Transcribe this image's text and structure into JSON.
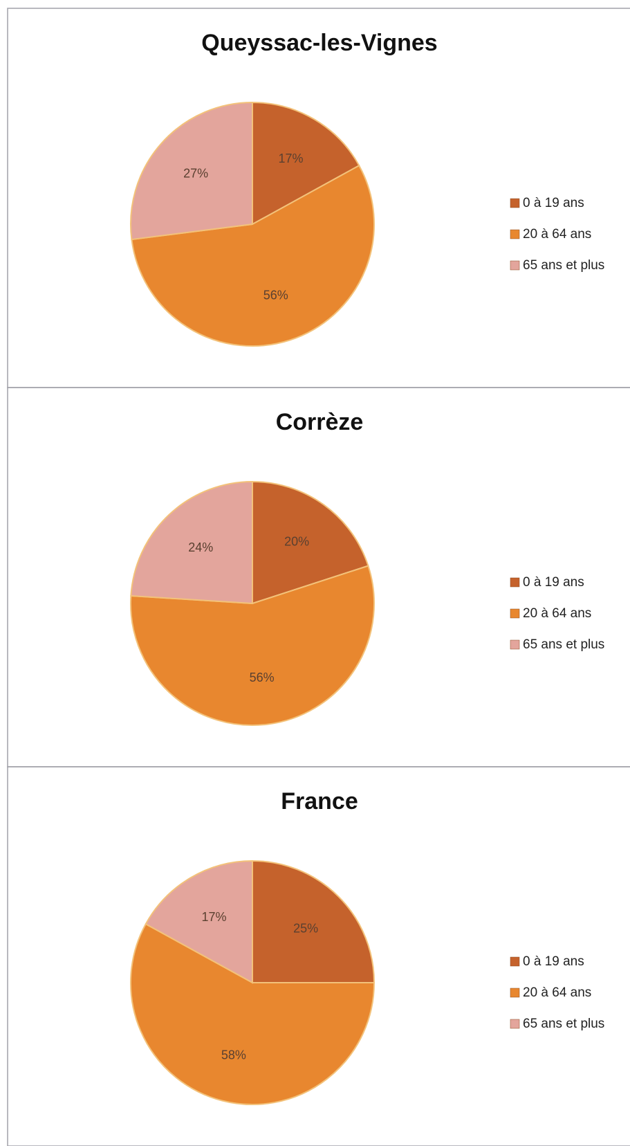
{
  "chart_data": [
    {
      "type": "pie",
      "title": "Queyssac-les-Vignes",
      "categories": [
        "0 à 19 ans",
        "20 à 64 ans",
        "65 ans et plus"
      ],
      "values": [
        17,
        56,
        27
      ],
      "value_labels": [
        "17%",
        "56%",
        "27%"
      ],
      "colors": [
        "#c5622c",
        "#e8872f",
        "#e3a59c"
      ]
    },
    {
      "type": "pie",
      "title": "Corrèze",
      "categories": [
        "0 à 19 ans",
        "20 à 64 ans",
        "65 ans et plus"
      ],
      "values": [
        20,
        56,
        24
      ],
      "value_labels": [
        "20%",
        "56%",
        "24%"
      ],
      "colors": [
        "#c5622c",
        "#e8872f",
        "#e3a59c"
      ]
    },
    {
      "type": "pie",
      "title": "France",
      "categories": [
        "0 à 19 ans",
        "20 à 64 ans",
        "65 ans et plus"
      ],
      "values": [
        25,
        58,
        17
      ],
      "value_labels": [
        "25%",
        "58%",
        "17%"
      ],
      "colors": [
        "#c5622c",
        "#e8872f",
        "#e3a59c"
      ]
    }
  ]
}
